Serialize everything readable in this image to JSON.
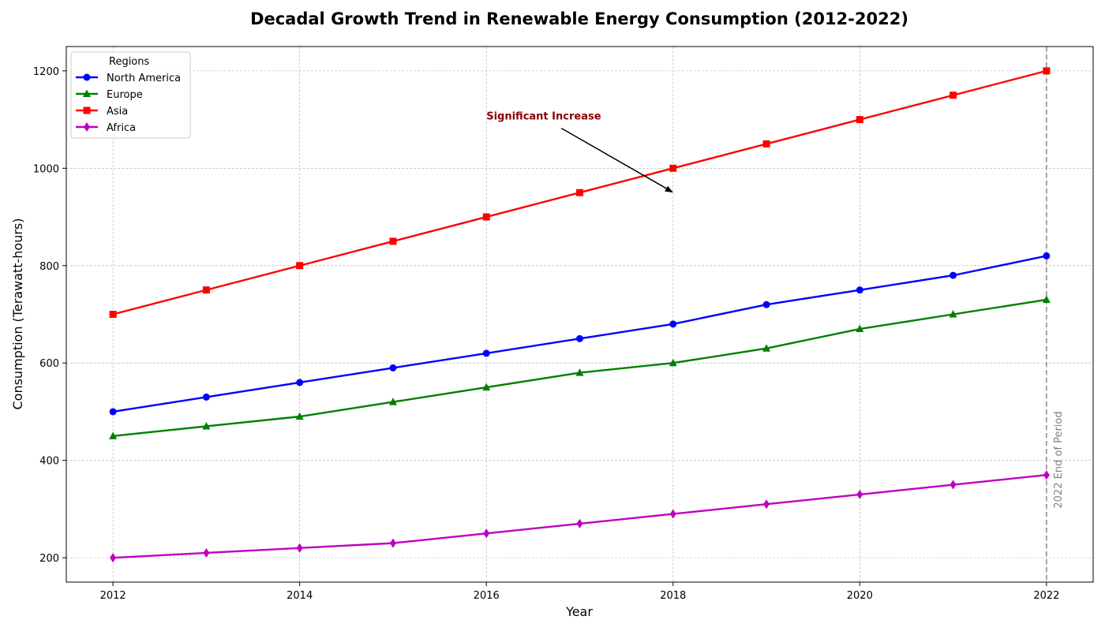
{
  "chart_data": {
    "type": "line",
    "title": "Decadal Growth Trend in Renewable Energy Consumption (2012-2022)",
    "xlabel": "Year",
    "ylabel": "Consumption (Terawatt-hours)",
    "x": [
      2012,
      2013,
      2014,
      2015,
      2016,
      2017,
      2018,
      2019,
      2020,
      2021,
      2022
    ],
    "xlim": [
      2011.5,
      2022.5
    ],
    "ylim": [
      150,
      1250
    ],
    "xticks": [
      "2012",
      "2014",
      "2016",
      "2018",
      "2020",
      "2022"
    ],
    "yticks": [
      "200",
      "400",
      "600",
      "800",
      "1000",
      "1200"
    ],
    "grid": true,
    "legend": {
      "title": "Regions",
      "placement": "upper-left"
    },
    "series": [
      {
        "name": "North America",
        "color": "#0000ff",
        "marker": "circle",
        "values": [
          500,
          530,
          560,
          590,
          620,
          650,
          680,
          720,
          750,
          780,
          820
        ]
      },
      {
        "name": "Europe",
        "color": "#008000",
        "marker": "triangle",
        "values": [
          450,
          470,
          490,
          520,
          550,
          580,
          600,
          630,
          670,
          700,
          730
        ]
      },
      {
        "name": "Asia",
        "color": "#ff0000",
        "marker": "square",
        "values": [
          700,
          750,
          800,
          850,
          900,
          950,
          1000,
          1050,
          1100,
          1150,
          1200
        ]
      },
      {
        "name": "Africa",
        "color": "#bf00bf",
        "marker": "diamond",
        "values": [
          200,
          210,
          220,
          230,
          250,
          270,
          290,
          310,
          330,
          350,
          370
        ]
      }
    ],
    "annotation": {
      "text": "Significant Increase",
      "color": "#8b0000",
      "text_at": [
        2016,
        1100
      ],
      "arrow_to": [
        2018,
        950
      ]
    },
    "vline": {
      "x": 2022,
      "label": "2022 End of Period",
      "color": "#808080"
    }
  }
}
